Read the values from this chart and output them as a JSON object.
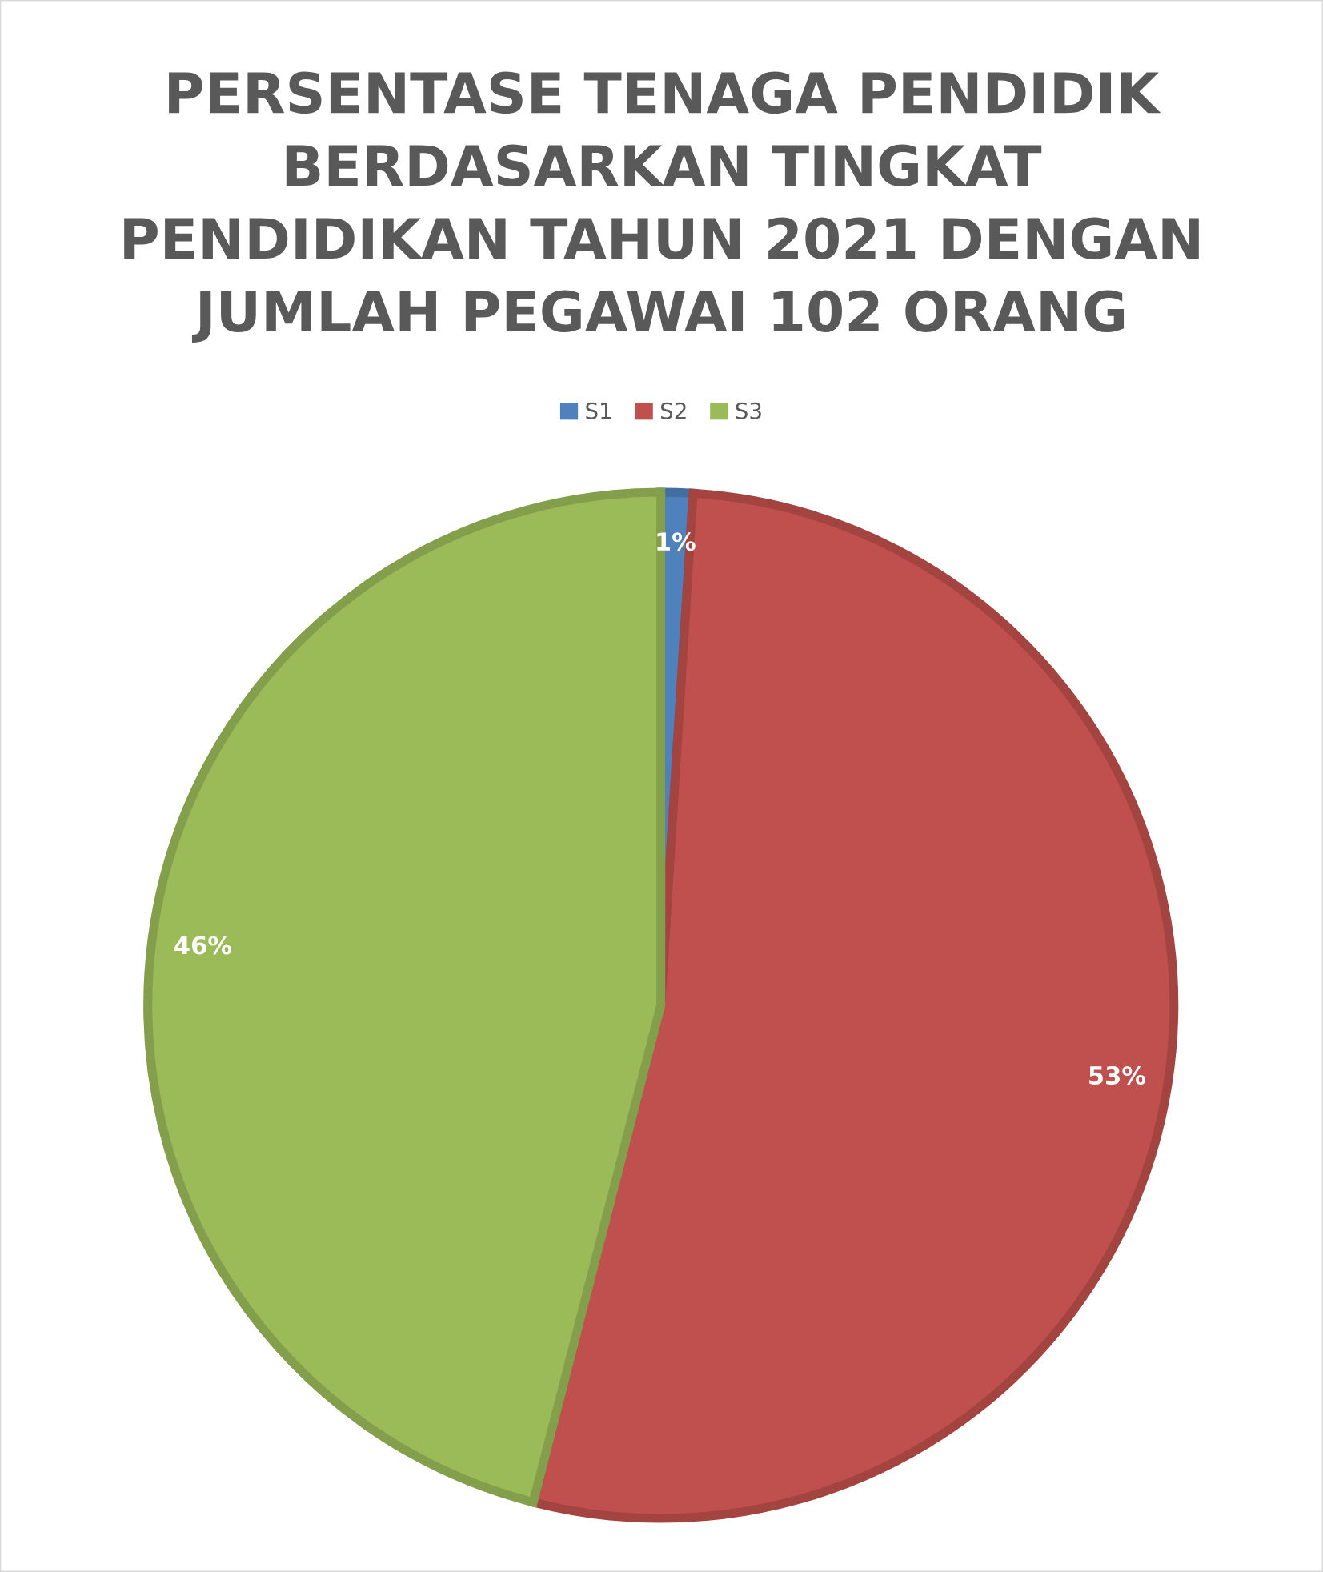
{
  "chart_data": {
    "type": "pie",
    "title": "PERSENTASE TENAGA PENDIDIK\nBERDASARKAN TINGKAT\nPENDIDIKAN TAHUN 2021 DENGAN\nJUMLAH PEGAWAI 102 ORANG",
    "categories": [
      "S1",
      "S2",
      "S3"
    ],
    "values": [
      1,
      53,
      46
    ],
    "colors": [
      "#4f81bd",
      "#c0504d",
      "#9bbb59"
    ],
    "value_labels": [
      "1%",
      "53%",
      "46%"
    ],
    "legend": "top"
  }
}
